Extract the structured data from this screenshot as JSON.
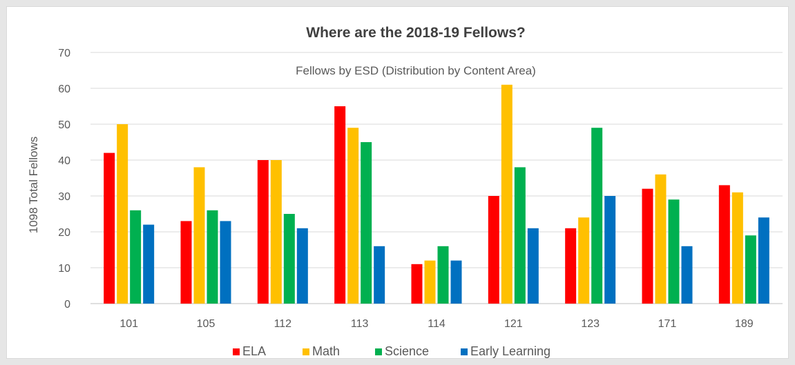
{
  "chart_data": {
    "type": "bar",
    "title": "Where are the 2018-19 Fellows?",
    "subtitle": "Fellows by ESD (Distribution by Content Area)",
    "xlabel": "",
    "ylabel": "1098 Total Fellows",
    "ylim": [
      0,
      70
    ],
    "yticks": [
      0,
      10,
      20,
      30,
      40,
      50,
      60,
      70
    ],
    "grid": true,
    "legend_position": "bottom",
    "categories": [
      "101",
      "105",
      "112",
      "113",
      "114",
      "121",
      "123",
      "171",
      "189"
    ],
    "series": [
      {
        "name": "ELA",
        "color": "#ff0000",
        "values": [
          42,
          23,
          40,
          55,
          11,
          30,
          21,
          32,
          33
        ]
      },
      {
        "name": "Math",
        "color": "#ffc000",
        "values": [
          50,
          38,
          40,
          49,
          12,
          61,
          24,
          36,
          31
        ]
      },
      {
        "name": "Science",
        "color": "#00b050",
        "values": [
          26,
          26,
          25,
          45,
          16,
          38,
          49,
          29,
          19
        ]
      },
      {
        "name": "Early Learning",
        "color": "#0070c0",
        "values": [
          22,
          23,
          21,
          16,
          12,
          21,
          30,
          16,
          24
        ]
      }
    ]
  }
}
